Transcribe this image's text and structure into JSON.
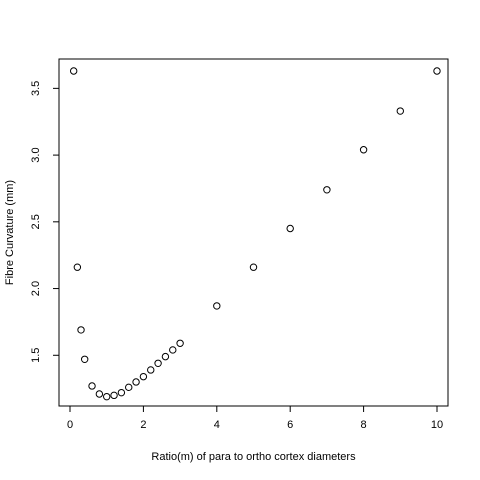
{
  "chart_data": {
    "type": "scatter",
    "title": "",
    "xlabel": "Ratio(m) of para to ortho cortex diameters",
    "ylabel": "Fibre Curvature (mm)",
    "xlim": [
      -0.3,
      10.3
    ],
    "ylim": [
      1.12,
      3.72
    ],
    "x_ticks": [
      0,
      2,
      4,
      6,
      8,
      10
    ],
    "y_ticks": [
      1.5,
      2.0,
      2.5,
      3.0,
      3.5
    ],
    "x_tick_labels": [
      "0",
      "2",
      "4",
      "6",
      "8",
      "10"
    ],
    "y_tick_labels": [
      "1.5",
      "2.0",
      "2.5",
      "3.0",
      "3.5"
    ],
    "grid": false,
    "legend": "none",
    "series": [
      {
        "x": [
          0.1,
          0.2,
          0.3,
          0.4,
          0.6,
          0.8,
          1.0,
          1.2,
          1.4,
          1.6,
          1.8,
          2.0,
          2.2,
          2.4,
          2.6,
          2.8,
          3.0,
          4,
          5,
          6,
          7,
          8,
          9,
          10
        ],
        "y": [
          3.63,
          2.16,
          1.69,
          1.47,
          1.27,
          1.21,
          1.19,
          1.2,
          1.22,
          1.26,
          1.3,
          1.34,
          1.39,
          1.44,
          1.49,
          1.54,
          1.59,
          1.87,
          2.16,
          2.45,
          2.74,
          3.04,
          3.33,
          3.63
        ]
      }
    ]
  }
}
